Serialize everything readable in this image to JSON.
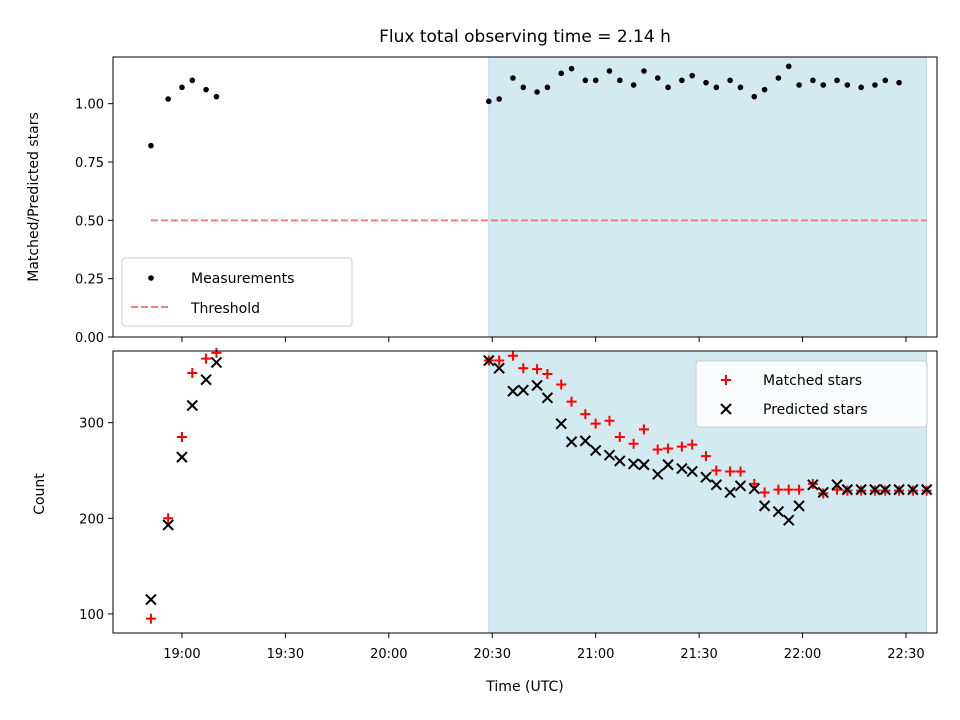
{
  "chart_data": [
    {
      "type": "scatter",
      "panel": "top",
      "title": "Flux total observing time = 2.14 h",
      "ylabel": "Matched/Predicted stars",
      "xlabel": "",
      "ylim": [
        0,
        1.2
      ],
      "xlim": [
        "18:40",
        "22:39"
      ],
      "yticks": [
        "0.00",
        "0.25",
        "0.50",
        "0.75",
        "1.00"
      ],
      "grid": false,
      "legend_position": "lower-left",
      "shaded_region": {
        "x_start": "20:29",
        "x_end": "22:36",
        "color": "#d3eaf0"
      },
      "series": [
        {
          "name": "Measurements",
          "kind": "points",
          "color": "#000000",
          "x": [
            "18:51",
            "18:56",
            "19:00",
            "19:03",
            "19:07",
            "19:10",
            "20:29",
            "20:32",
            "20:36",
            "20:39",
            "20:43",
            "20:46",
            "20:50",
            "20:53",
            "20:57",
            "21:00",
            "21:04",
            "21:07",
            "21:11",
            "21:14",
            "21:18",
            "21:21",
            "21:25",
            "21:28",
            "21:32",
            "21:35",
            "21:39",
            "21:42",
            "21:46",
            "21:49",
            "21:53",
            "21:56",
            "21:59",
            "22:03",
            "22:06",
            "22:10",
            "22:13",
            "22:17",
            "22:21",
            "22:24",
            "22:28"
          ],
          "y": [
            0.82,
            1.02,
            1.07,
            1.1,
            1.06,
            1.03,
            1.01,
            1.02,
            1.11,
            1.07,
            1.05,
            1.07,
            1.13,
            1.15,
            1.1,
            1.1,
            1.14,
            1.1,
            1.08,
            1.14,
            1.11,
            1.07,
            1.1,
            1.12,
            1.09,
            1.07,
            1.1,
            1.07,
            1.03,
            1.06,
            1.11,
            1.16,
            1.08,
            1.1,
            1.08,
            1.1,
            1.08,
            1.07,
            1.08,
            1.1,
            1.09
          ]
        },
        {
          "name": "Threshold",
          "kind": "dashed-line",
          "color": "#f08080",
          "x": [
            "18:51",
            "22:36"
          ],
          "y": [
            0.5,
            0.5
          ]
        }
      ]
    },
    {
      "type": "scatter",
      "panel": "bottom",
      "title": "",
      "ylabel": "Count",
      "xlabel": "Time (UTC)",
      "ylim": [
        80,
        375
      ],
      "xlim": [
        "18:40",
        "22:39"
      ],
      "yticks": [
        "100",
        "200",
        "300"
      ],
      "xticks": [
        "19:00",
        "19:30",
        "20:00",
        "20:30",
        "21:00",
        "21:30",
        "22:00",
        "22:30"
      ],
      "grid": false,
      "legend_position": "upper-right",
      "shaded_region": {
        "x_start": "20:29",
        "x_end": "22:36",
        "color": "#d3eaf0"
      },
      "series": [
        {
          "name": "Matched stars",
          "marker": "+",
          "color": "#ff0000",
          "x": [
            "18:51",
            "18:56",
            "19:00",
            "19:03",
            "19:07",
            "19:10",
            "20:29",
            "20:32",
            "20:36",
            "20:39",
            "20:43",
            "20:46",
            "20:50",
            "20:53",
            "20:57",
            "21:00",
            "21:04",
            "21:07",
            "21:11",
            "21:14",
            "21:18",
            "21:21",
            "21:25",
            "21:28",
            "21:32",
            "21:35",
            "21:39",
            "21:42",
            "21:46",
            "21:49",
            "21:53",
            "21:56",
            "21:59",
            "22:03",
            "22:06",
            "22:10",
            "22:13",
            "22:17",
            "22:21",
            "22:24",
            "22:28",
            "22:32",
            "22:36"
          ],
          "y": [
            95,
            200,
            285,
            352,
            367,
            373,
            365,
            365,
            370,
            357,
            356,
            351,
            340,
            322,
            309,
            299,
            302,
            285,
            278,
            293,
            272,
            273,
            275,
            277,
            265,
            250,
            249,
            249,
            236,
            227,
            230,
            230,
            230,
            236,
            226,
            230,
            229,
            229,
            229,
            229,
            229,
            229,
            229
          ]
        },
        {
          "name": "Predicted stars",
          "marker": "x",
          "color": "#000000",
          "x": [
            "18:51",
            "18:56",
            "19:00",
            "19:03",
            "19:07",
            "19:10",
            "20:29",
            "20:32",
            "20:36",
            "20:39",
            "20:43",
            "20:46",
            "20:50",
            "20:53",
            "20:57",
            "21:00",
            "21:04",
            "21:07",
            "21:11",
            "21:14",
            "21:18",
            "21:21",
            "21:25",
            "21:28",
            "21:32",
            "21:35",
            "21:39",
            "21:42",
            "21:46",
            "21:49",
            "21:53",
            "21:56",
            "21:59",
            "22:03",
            "22:06",
            "22:10",
            "22:13",
            "22:17",
            "22:21",
            "22:24",
            "22:28",
            "22:32",
            "22:36"
          ],
          "y": [
            115,
            193,
            264,
            318,
            345,
            363,
            365,
            357,
            333,
            334,
            339,
            326,
            299,
            280,
            281,
            271,
            266,
            260,
            257,
            256,
            246,
            256,
            252,
            249,
            243,
            235,
            227,
            234,
            231,
            213,
            207,
            198,
            213,
            235,
            227,
            235,
            230,
            230,
            230,
            230,
            230,
            230,
            230
          ]
        }
      ]
    }
  ]
}
